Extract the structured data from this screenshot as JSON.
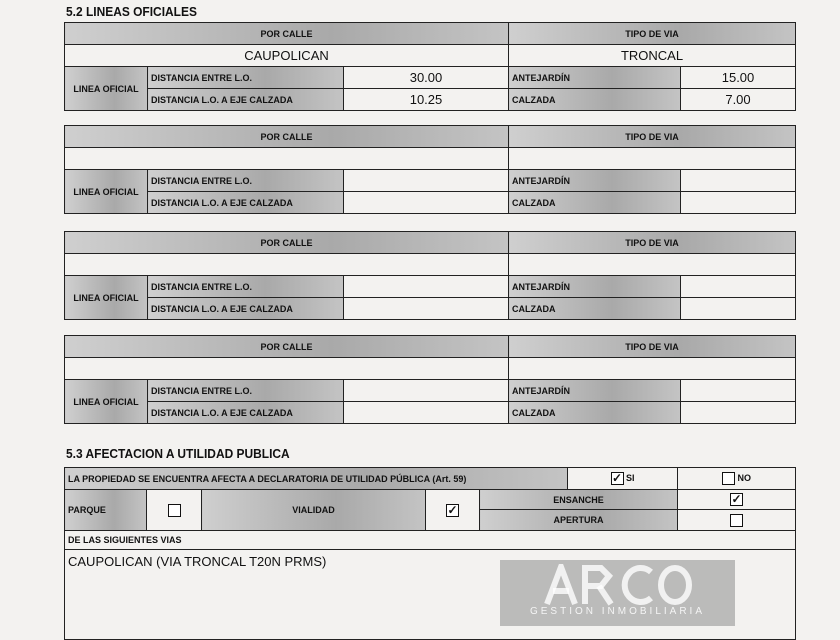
{
  "section52": {
    "title": "5.2 LINEAS OFICIALES",
    "labels": {
      "por_calle": "POR CALLE",
      "tipo_via": "TIPO DE VIA",
      "linea_oficial": "LINEA OFICIAL",
      "dist_lo": "DISTANCIA ENTRE L.O.",
      "dist_eje": "DISTANCIA L.O. A EJE CALZADA",
      "antejardin": "ANTEJARDÍN",
      "calzada": "CALZADA"
    },
    "tables": [
      {
        "calle": "CAUPOLICAN",
        "tipo": "TRONCAL",
        "dist_lo": "30.00",
        "dist_eje": "10.25",
        "antejardin": "15.00",
        "calzada": "7.00"
      },
      {
        "calle": "",
        "tipo": "",
        "dist_lo": "",
        "dist_eje": "",
        "antejardin": "",
        "calzada": ""
      },
      {
        "calle": "",
        "tipo": "",
        "dist_lo": "",
        "dist_eje": "",
        "antejardin": "",
        "calzada": ""
      },
      {
        "calle": "",
        "tipo": "",
        "dist_lo": "",
        "dist_eje": "",
        "antejardin": "",
        "calzada": ""
      }
    ]
  },
  "section53": {
    "title": "5.3 AFECTACION A UTILIDAD PUBLICA",
    "question": "LA PROPIEDAD SE ENCUENTRA AFECTA A DECLARATORIA DE UTILIDAD PÚBLICA (Art. 59)",
    "si": "SI",
    "no": "NO",
    "si_checked": true,
    "no_checked": false,
    "parque": "PARQUE",
    "parque_checked": false,
    "vialidad": "VIALIDAD",
    "vialidad_checked": true,
    "ensanche": "ENSANCHE",
    "ensanche_checked": true,
    "apertura": "APERTURA",
    "apertura_checked": false,
    "vias_label": "DE LAS SIGUIENTES VIAS",
    "vias": "CAUPOLICAN (VIA TRONCAL T20N PRMS)",
    "check_mark": "✓"
  },
  "watermark": {
    "logo": "ARCO",
    "tagline": "GESTION INMOBILIARIA"
  }
}
